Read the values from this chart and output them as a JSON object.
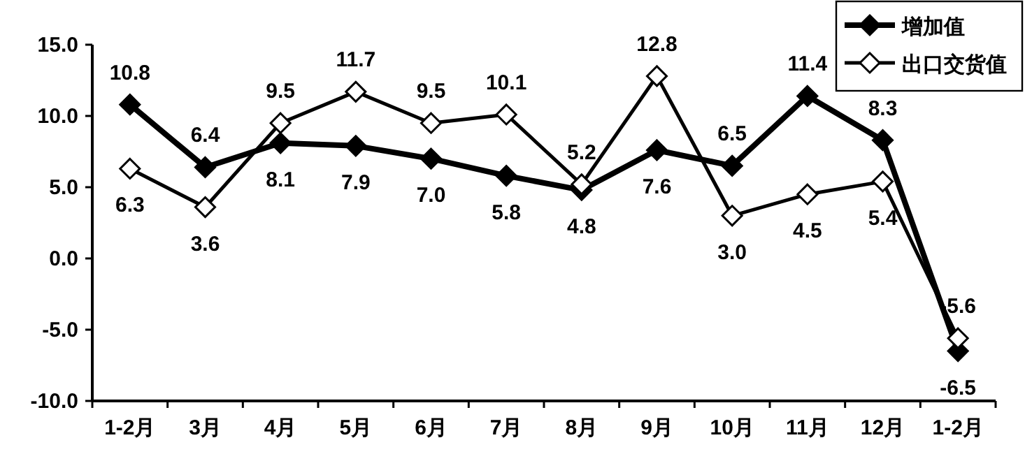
{
  "chart_data": {
    "type": "line",
    "categories": [
      "1-2月",
      "3月",
      "4月",
      "5月",
      "6月",
      "7月",
      "8月",
      "9月",
      "10月",
      "11月",
      "12月",
      "1-2月"
    ],
    "series": [
      {
        "name": "增加值",
        "color": "#000000",
        "values": [
          10.8,
          6.4,
          8.1,
          7.9,
          7.0,
          5.8,
          4.8,
          7.6,
          6.5,
          11.4,
          8.3,
          -6.5
        ],
        "value_labels": [
          "10.8",
          "6.4",
          "8.1",
          "7.9",
          "7.0",
          "5.8",
          "4.8",
          "7.6",
          "6.5",
          "11.4",
          "8.3",
          "-6.5"
        ]
      },
      {
        "name": "出口交货值",
        "color": "#000000",
        "values": [
          6.3,
          3.6,
          9.5,
          11.7,
          9.5,
          10.1,
          5.2,
          12.8,
          3.0,
          4.5,
          5.4,
          -5.6
        ],
        "value_labels": [
          "6.3",
          "3.6",
          "9.5",
          "11.7",
          "9.5",
          "10.1",
          "5.2",
          "12.8",
          "3.0",
          "4.5",
          "5.4",
          "-5.6"
        ]
      }
    ],
    "ylim": [
      -10,
      15
    ],
    "yticks": [
      {
        "value": -10,
        "label": "-10.0"
      },
      {
        "value": -5,
        "label": "-5.0"
      },
      {
        "value": 0,
        "label": "0.0"
      },
      {
        "value": 5,
        "label": "5.0"
      },
      {
        "value": 10,
        "label": "10.0"
      },
      {
        "value": 15,
        "label": "15.0"
      }
    ],
    "marker": "diamond",
    "line_style": "solid",
    "grid": false,
    "legend": "top right"
  }
}
